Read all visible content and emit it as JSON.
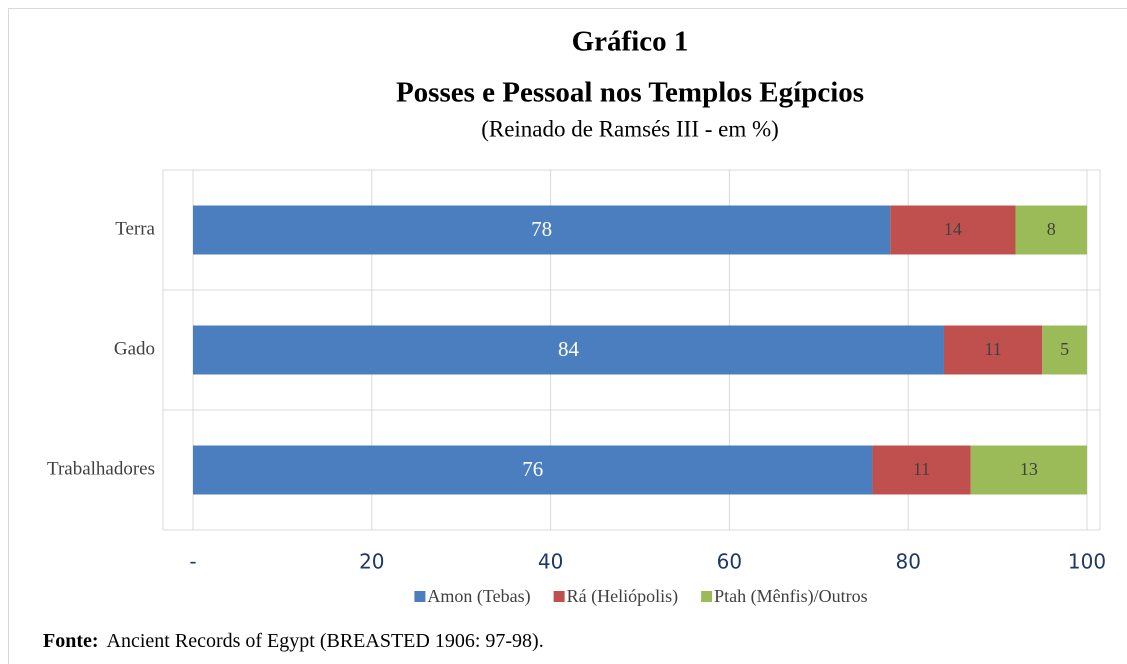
{
  "chart_data": {
    "type": "stacked-bar-horizontal",
    "title": [
      "Gráfico 1",
      "Posses e Pessoal nos Templos Egípcios"
    ],
    "subtitle": "(Reinado de Ramsés III - em %)",
    "categories": [
      "Terra",
      "Gado",
      "Trabalhadores"
    ],
    "series": [
      {
        "name": "Amon (Tebas)",
        "color": "#4a7ebf",
        "values": [
          78,
          84,
          76
        ]
      },
      {
        "name": "Rá (Heliópolis)",
        "color": "#c0504d",
        "values": [
          14,
          11,
          11
        ]
      },
      {
        "name": "Ptah (Mênfis)/Outros",
        "color": "#9bbb59",
        "values": [
          8,
          5,
          13
        ]
      }
    ],
    "xlim": [
      0,
      100
    ],
    "xticks": [
      {
        "value": 0,
        "label": "-"
      },
      20,
      40,
      60,
      80,
      100
    ],
    "grid": true,
    "legend": "bottom",
    "source_label": "Fonte:",
    "source": "Ancient Records of Egypt (BREASTED 1906: 97-98)."
  }
}
